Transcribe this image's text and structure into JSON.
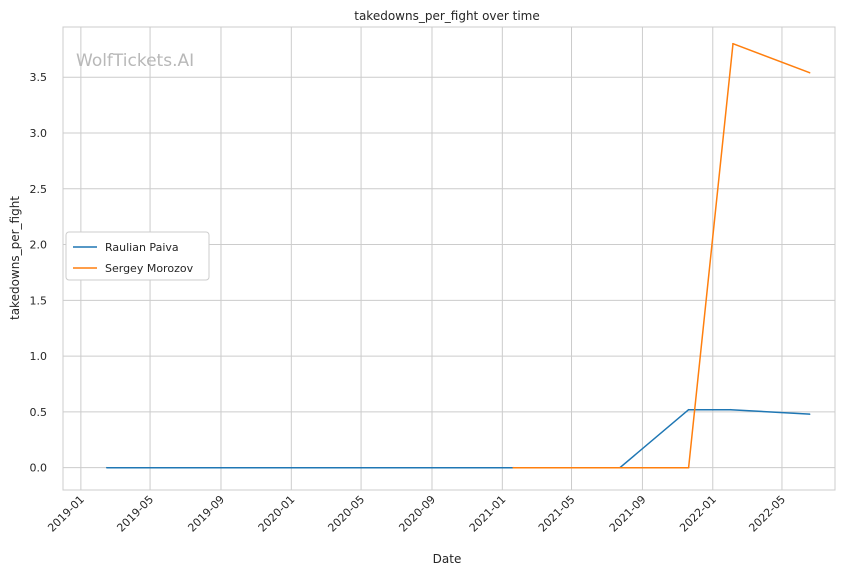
{
  "chart_data": {
    "type": "line",
    "title": "takedowns_per_fight over time",
    "xlabel": "Date",
    "ylabel": "takedowns_per_fight",
    "watermark": "WolfTickets.AI",
    "x_ticks": [
      "2019-01",
      "2019-05",
      "2019-09",
      "2020-01",
      "2020-05",
      "2020-09",
      "2021-01",
      "2021-05",
      "2021-09",
      "2022-01",
      "2022-05"
    ],
    "y_ticks": [
      "0.0",
      "0.5",
      "1.0",
      "1.5",
      "2.0",
      "2.5",
      "3.0",
      "3.5"
    ],
    "xlim": [
      "2018-12-01",
      "2022-08-01"
    ],
    "ylim": [
      -0.2,
      3.95
    ],
    "grid": true,
    "legend_position": "center-left",
    "series": [
      {
        "name": "Raulian Paiva",
        "color": "#1f77b4",
        "points": [
          {
            "x": "2019-02-15",
            "y": 0.0
          },
          {
            "x": "2021-07-24",
            "y": 0.0
          },
          {
            "x": "2021-11-20",
            "y": 0.52
          },
          {
            "x": "2022-02-01",
            "y": 0.52
          },
          {
            "x": "2022-06-18",
            "y": 0.48
          }
        ]
      },
      {
        "name": "Sergey Morozov",
        "color": "#ff7f0e",
        "points": [
          {
            "x": "2021-01-20",
            "y": 0.0
          },
          {
            "x": "2021-11-20",
            "y": 0.0
          },
          {
            "x": "2022-02-05",
            "y": 3.8
          },
          {
            "x": "2022-06-18",
            "y": 3.54
          }
        ]
      }
    ]
  }
}
